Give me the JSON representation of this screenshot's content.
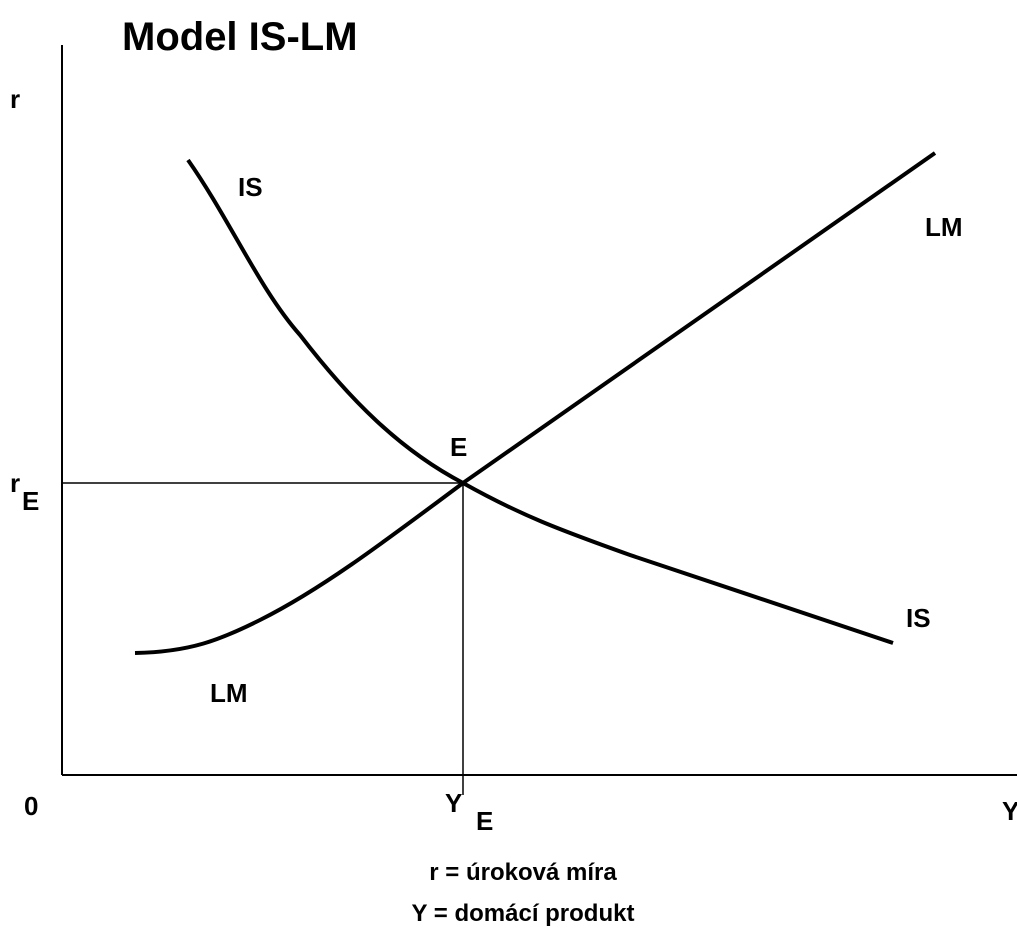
{
  "title": "Model IS-LM",
  "axes": {
    "y_label": "r",
    "x_label": "Y",
    "origin": "0"
  },
  "equilibrium": {
    "label": "E",
    "r": {
      "text": "r",
      "subscript": "E"
    },
    "y": {
      "text": "Y",
      "subscript": "E"
    }
  },
  "curves": {
    "is": {
      "label_top": "IS",
      "label_bottom": "IS"
    },
    "lm": {
      "label_top": "LM",
      "label_bottom": "LM"
    }
  },
  "legend": [
    "r = úroková míra",
    "Y = domácí produkt"
  ]
}
